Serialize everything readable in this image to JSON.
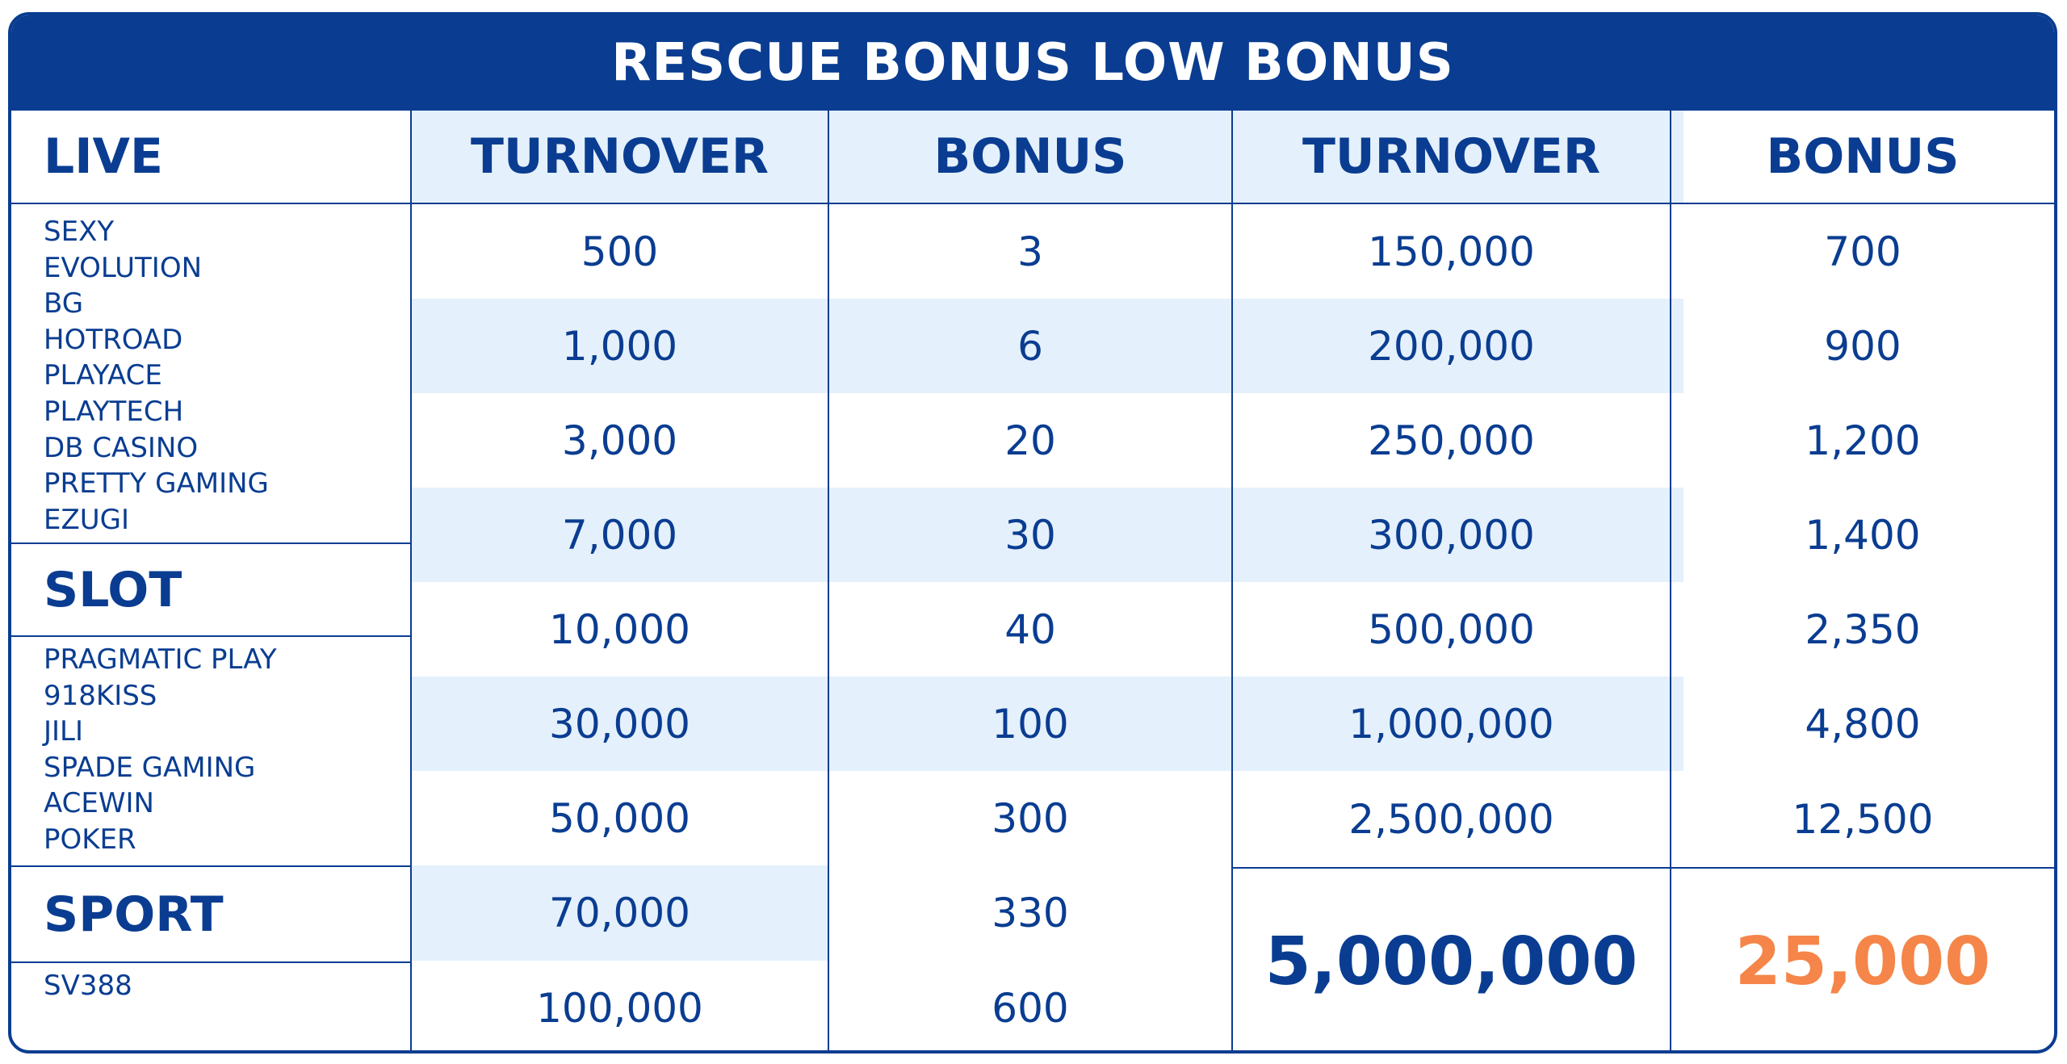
{
  "title": "RESCUE BONUS LOW BONUS",
  "colors": {
    "primary": "#0a3d91",
    "band": "#e4f0fb",
    "highlight": "#f58549",
    "background": "#ffffff"
  },
  "headers": {
    "category": "LIVE",
    "turnover_1": "TURNOVER",
    "bonus_1": "BONUS",
    "turnover_2": "TURNOVER",
    "bonus_2": "BONUS"
  },
  "categories": [
    {
      "name": "LIVE",
      "providers": [
        "SEXY",
        "EVOLUTION",
        "BG",
        "HOTROAD",
        "PLAYACE",
        "PLAYTECH",
        "DB CASINO",
        "PRETTY GAMING",
        "EZUGI"
      ]
    },
    {
      "name": "SLOT",
      "providers": [
        "PRAGMATIC PLAY",
        "918KISS",
        "JILI",
        "SPADE GAMING",
        "ACEWIN",
        "POKER"
      ]
    },
    {
      "name": "SPORT",
      "providers": [
        "SV388"
      ]
    }
  ],
  "tier_left": [
    {
      "turnover": "500",
      "bonus": "3"
    },
    {
      "turnover": "1,000",
      "bonus": "6"
    },
    {
      "turnover": "3,000",
      "bonus": "20"
    },
    {
      "turnover": "7,000",
      "bonus": "30"
    },
    {
      "turnover": "10,000",
      "bonus": "40"
    },
    {
      "turnover": "30,000",
      "bonus": "100"
    },
    {
      "turnover": "50,000",
      "bonus": "300"
    },
    {
      "turnover": "70,000",
      "bonus": "330"
    },
    {
      "turnover": "100,000",
      "bonus": "600"
    }
  ],
  "tier_right": [
    {
      "turnover": "150,000",
      "bonus": "700"
    },
    {
      "turnover": "200,000",
      "bonus": "900"
    },
    {
      "turnover": "250,000",
      "bonus": "1,200"
    },
    {
      "turnover": "300,000",
      "bonus": "1,400"
    },
    {
      "turnover": "500,000",
      "bonus": "2,350"
    },
    {
      "turnover": "1,000,000",
      "bonus": "4,800"
    },
    {
      "turnover": "2,500,000",
      "bonus": "12,500"
    }
  ],
  "top_tier": {
    "turnover": "5,000,000",
    "bonus": "25,000"
  }
}
